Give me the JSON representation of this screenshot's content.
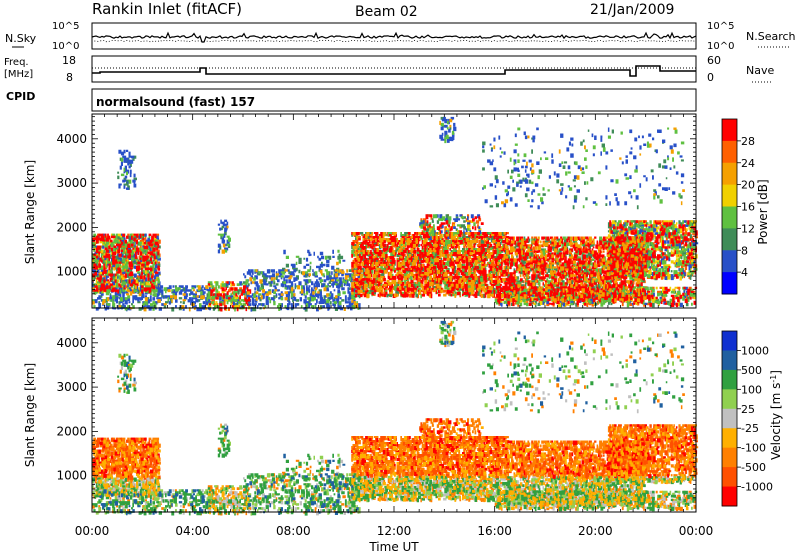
{
  "header": {
    "site": "Rankin Inlet (fitACF)",
    "beam": "Beam 02",
    "date": "21/Jan/2009"
  },
  "nsky_panel": {
    "left_label": "N.Sky",
    "right_label": "N.Search",
    "left_ticks": [
      "10^5",
      "10^0"
    ],
    "right_ticks": [
      "10^5",
      "10^0"
    ]
  },
  "freq_panel": {
    "left_label_1": "Freq.",
    "left_label_2": "[MHz]",
    "right_label": "Nave",
    "left_ticks": [
      "18",
      "8"
    ],
    "right_ticks": [
      "60",
      "0"
    ]
  },
  "cpid_panel": {
    "label": "CPID",
    "text": "normalsound (fast) 157"
  },
  "colors": {
    "power_scale": [
      "#0000ff",
      "#2850c8",
      "#3f8c58",
      "#5fc040",
      "#f0d000",
      "#f5a000",
      "#ff6000",
      "#ff0000"
    ],
    "velocity_scale": [
      "#ff0000",
      "#ff5000",
      "#ff8000",
      "#ffb000",
      "#c0c0c0",
      "#90d050",
      "#30a040",
      "#2060a0",
      "#1030d0"
    ]
  },
  "chart_data": [
    {
      "type": "heatmap",
      "quantity": "Power",
      "xlabel": "",
      "ylabel": "Slant Range [km]",
      "colorbar_label": "Power [dB]",
      "colorbar_ticks": [
        "28",
        "24",
        "20",
        "16",
        "12",
        "8",
        "4"
      ],
      "y_ticks": [
        "1000",
        "2000",
        "3000",
        "4000"
      ],
      "ylim": [
        180,
        4560
      ],
      "xlim": [
        "00:00",
        "24:00"
      ]
    },
    {
      "type": "heatmap",
      "quantity": "Velocity",
      "xlabel": "Time UT",
      "ylabel": "Slant Range [km]",
      "colorbar_label": "Velocity [m s^-1]",
      "colorbar_ticks": [
        "1000",
        "500",
        "100",
        "25",
        "-25",
        "-100",
        "-500",
        "-1000"
      ],
      "y_ticks": [
        "1000",
        "2000",
        "3000",
        "4000"
      ],
      "x_ticks": [
        "00:00",
        "04:00",
        "08:00",
        "12:00",
        "16:00",
        "20:00",
        "00:00"
      ],
      "ylim": [
        180,
        4560
      ],
      "xlim": [
        "00:00",
        "24:00"
      ]
    }
  ]
}
